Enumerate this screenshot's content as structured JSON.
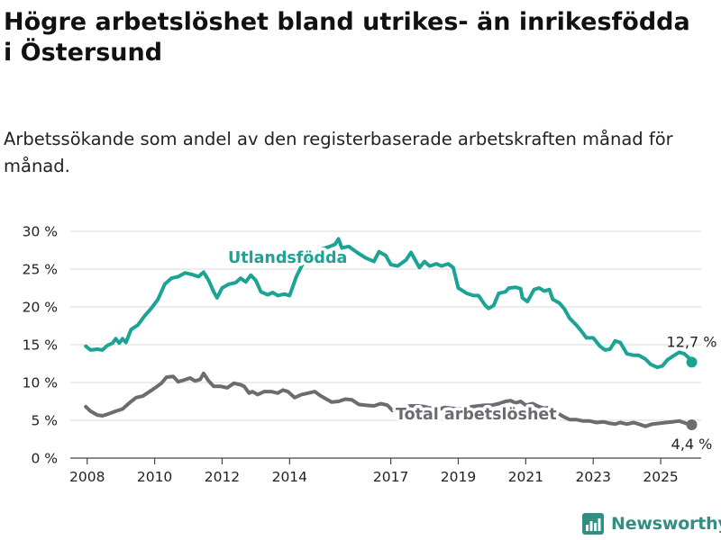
{
  "title": "Högre arbetslöshet bland utrikes- än inrikesfödda i Östersund",
  "subtitle": "Arbetssökande som andel av den registerbaserade arbetskraften månad för månad.",
  "brand": {
    "name": "Newsworthy",
    "logo_icon": "bar-chart-logo-icon"
  },
  "colors": {
    "utlandsfodda": "#1ba394",
    "total": "#6d6b72",
    "grid": "#d9d9d9",
    "axis": "#444444"
  },
  "chart_data": {
    "type": "line",
    "title": "Högre arbetslöshet bland utrikes- än inrikesfödda i Östersund",
    "xlabel": "",
    "ylabel": "",
    "xlim": [
      2007.5,
      2026.2
    ],
    "ylim": [
      0,
      30
    ],
    "y_ticks": [
      0,
      5,
      10,
      15,
      20,
      25,
      30
    ],
    "y_tick_labels": [
      "0 %",
      "5 %",
      "10 %",
      "15 %",
      "20 %",
      "25 %",
      "30 %"
    ],
    "x_ticks": [
      2008,
      2010,
      2012,
      2014,
      2017,
      2019,
      2021,
      2023,
      2025
    ],
    "x_tick_labels": [
      "2008",
      "2010",
      "2012",
      "2014",
      "2017",
      "2019",
      "2021",
      "2023",
      "2025"
    ],
    "grid": "horizontal",
    "series": [
      {
        "name": "Utlandsfödda",
        "color": "#1ba394",
        "end_label": "12,7 %",
        "points": [
          [
            2007.96,
            14.8
          ],
          [
            2008.1,
            14.3
          ],
          [
            2008.3,
            14.4
          ],
          [
            2008.45,
            14.3
          ],
          [
            2008.6,
            14.9
          ],
          [
            2008.75,
            15.2
          ],
          [
            2008.85,
            15.8
          ],
          [
            2008.95,
            15.2
          ],
          [
            2009.05,
            15.8
          ],
          [
            2009.15,
            15.3
          ],
          [
            2009.3,
            17.0
          ],
          [
            2009.5,
            17.6
          ],
          [
            2009.7,
            18.8
          ],
          [
            2009.9,
            19.8
          ],
          [
            2010.1,
            21.0
          ],
          [
            2010.3,
            23.0
          ],
          [
            2010.5,
            23.8
          ],
          [
            2010.7,
            24.0
          ],
          [
            2010.9,
            24.5
          ],
          [
            2011.1,
            24.3
          ],
          [
            2011.3,
            24.0
          ],
          [
            2011.45,
            24.6
          ],
          [
            2011.6,
            23.5
          ],
          [
            2011.75,
            22.0
          ],
          [
            2011.85,
            21.2
          ],
          [
            2012.0,
            22.5
          ],
          [
            2012.2,
            23.0
          ],
          [
            2012.4,
            23.2
          ],
          [
            2012.55,
            23.8
          ],
          [
            2012.7,
            23.3
          ],
          [
            2012.85,
            24.2
          ],
          [
            2013.0,
            23.5
          ],
          [
            2013.15,
            22.0
          ],
          [
            2013.35,
            21.6
          ],
          [
            2013.5,
            21.9
          ],
          [
            2013.65,
            21.5
          ],
          [
            2013.85,
            21.7
          ],
          [
            2014.0,
            21.5
          ],
          [
            2014.2,
            24.0
          ],
          [
            2014.4,
            25.8
          ],
          [
            2014.6,
            26.6
          ],
          [
            2014.8,
            27.1
          ],
          [
            2015.0,
            27.7
          ],
          [
            2015.2,
            28.0
          ],
          [
            2015.35,
            28.3
          ],
          [
            2015.45,
            29.0
          ],
          [
            2015.55,
            27.8
          ],
          [
            2015.75,
            28.0
          ],
          [
            2016.0,
            27.2
          ],
          [
            2016.25,
            26.5
          ],
          [
            2016.5,
            26.0
          ],
          [
            2016.65,
            27.3
          ],
          [
            2016.85,
            26.8
          ],
          [
            2017.0,
            25.6
          ],
          [
            2017.2,
            25.4
          ],
          [
            2017.45,
            26.2
          ],
          [
            2017.6,
            27.2
          ],
          [
            2017.75,
            26.0
          ],
          [
            2017.85,
            25.2
          ],
          [
            2018.0,
            26.0
          ],
          [
            2018.15,
            25.4
          ],
          [
            2018.35,
            25.7
          ],
          [
            2018.5,
            25.4
          ],
          [
            2018.7,
            25.7
          ],
          [
            2018.85,
            25.2
          ],
          [
            2019.0,
            22.5
          ],
          [
            2019.25,
            21.8
          ],
          [
            2019.45,
            21.5
          ],
          [
            2019.6,
            21.5
          ],
          [
            2019.8,
            20.2
          ],
          [
            2019.9,
            19.8
          ],
          [
            2020.05,
            20.2
          ],
          [
            2020.2,
            21.8
          ],
          [
            2020.4,
            22.0
          ],
          [
            2020.5,
            22.5
          ],
          [
            2020.7,
            22.6
          ],
          [
            2020.85,
            22.4
          ],
          [
            2020.9,
            21.2
          ],
          [
            2021.05,
            20.7
          ],
          [
            2021.25,
            22.3
          ],
          [
            2021.4,
            22.5
          ],
          [
            2021.55,
            22.1
          ],
          [
            2021.7,
            22.3
          ],
          [
            2021.8,
            21.0
          ],
          [
            2022.0,
            20.5
          ],
          [
            2022.15,
            19.7
          ],
          [
            2022.3,
            18.5
          ],
          [
            2022.5,
            17.6
          ],
          [
            2022.65,
            16.8
          ],
          [
            2022.8,
            15.9
          ],
          [
            2023.0,
            15.9
          ],
          [
            2023.2,
            14.8
          ],
          [
            2023.35,
            14.3
          ],
          [
            2023.5,
            14.4
          ],
          [
            2023.65,
            15.5
          ],
          [
            2023.8,
            15.3
          ],
          [
            2024.0,
            13.8
          ],
          [
            2024.2,
            13.6
          ],
          [
            2024.35,
            13.6
          ],
          [
            2024.55,
            13.1
          ],
          [
            2024.7,
            12.4
          ],
          [
            2024.9,
            12.0
          ],
          [
            2025.05,
            12.2
          ],
          [
            2025.2,
            13.0
          ],
          [
            2025.4,
            13.6
          ],
          [
            2025.55,
            14.0
          ],
          [
            2025.7,
            13.8
          ],
          [
            2025.85,
            13.2
          ],
          [
            2025.92,
            12.7
          ]
        ]
      },
      {
        "name": "Total arbetslöshet",
        "color": "#6d6b72",
        "end_label": "4,4 %",
        "points": [
          [
            2007.96,
            6.8
          ],
          [
            2008.1,
            6.2
          ],
          [
            2008.3,
            5.7
          ],
          [
            2008.45,
            5.6
          ],
          [
            2008.6,
            5.8
          ],
          [
            2008.85,
            6.2
          ],
          [
            2009.05,
            6.5
          ],
          [
            2009.25,
            7.3
          ],
          [
            2009.45,
            8.0
          ],
          [
            2009.65,
            8.2
          ],
          [
            2009.85,
            8.8
          ],
          [
            2010.05,
            9.4
          ],
          [
            2010.2,
            9.9
          ],
          [
            2010.35,
            10.7
          ],
          [
            2010.55,
            10.8
          ],
          [
            2010.7,
            10.1
          ],
          [
            2010.85,
            10.3
          ],
          [
            2011.05,
            10.6
          ],
          [
            2011.2,
            10.2
          ],
          [
            2011.35,
            10.4
          ],
          [
            2011.45,
            11.2
          ],
          [
            2011.6,
            10.2
          ],
          [
            2011.75,
            9.5
          ],
          [
            2011.95,
            9.5
          ],
          [
            2012.15,
            9.3
          ],
          [
            2012.35,
            9.9
          ],
          [
            2012.55,
            9.7
          ],
          [
            2012.65,
            9.5
          ],
          [
            2012.8,
            8.6
          ],
          [
            2012.9,
            8.8
          ],
          [
            2013.05,
            8.4
          ],
          [
            2013.25,
            8.8
          ],
          [
            2013.45,
            8.8
          ],
          [
            2013.65,
            8.6
          ],
          [
            2013.8,
            9.0
          ],
          [
            2013.95,
            8.8
          ],
          [
            2014.15,
            8.0
          ],
          [
            2014.35,
            8.4
          ],
          [
            2014.55,
            8.6
          ],
          [
            2014.75,
            8.8
          ],
          [
            2014.9,
            8.3
          ],
          [
            2015.05,
            7.9
          ],
          [
            2015.25,
            7.4
          ],
          [
            2015.45,
            7.5
          ],
          [
            2015.65,
            7.8
          ],
          [
            2015.85,
            7.7
          ],
          [
            2016.05,
            7.1
          ],
          [
            2016.25,
            7.0
          ],
          [
            2016.5,
            6.9
          ],
          [
            2016.7,
            7.2
          ],
          [
            2016.9,
            7.0
          ],
          [
            2017.05,
            6.3
          ],
          [
            2017.25,
            6.6
          ],
          [
            2017.45,
            6.8
          ],
          [
            2017.6,
            6.9
          ],
          [
            2017.8,
            6.9
          ],
          [
            2018.0,
            6.8
          ],
          [
            2018.2,
            6.6
          ],
          [
            2018.4,
            6.4
          ],
          [
            2018.6,
            6.7
          ],
          [
            2018.8,
            6.6
          ],
          [
            2019.0,
            6.5
          ],
          [
            2019.2,
            6.6
          ],
          [
            2019.4,
            6.8
          ],
          [
            2019.6,
            6.9
          ],
          [
            2019.8,
            7.0
          ],
          [
            2020.0,
            7.0
          ],
          [
            2020.2,
            7.2
          ],
          [
            2020.4,
            7.5
          ],
          [
            2020.55,
            7.6
          ],
          [
            2020.7,
            7.3
          ],
          [
            2020.85,
            7.5
          ],
          [
            2021.0,
            7.0
          ],
          [
            2021.2,
            7.2
          ],
          [
            2021.4,
            6.8
          ],
          [
            2021.55,
            6.6
          ],
          [
            2021.7,
            6.7
          ],
          [
            2021.85,
            6.2
          ],
          [
            2022.0,
            5.8
          ],
          [
            2022.15,
            5.4
          ],
          [
            2022.3,
            5.1
          ],
          [
            2022.5,
            5.1
          ],
          [
            2022.7,
            4.9
          ],
          [
            2022.9,
            4.9
          ],
          [
            2023.1,
            4.7
          ],
          [
            2023.3,
            4.8
          ],
          [
            2023.5,
            4.6
          ],
          [
            2023.65,
            4.5
          ],
          [
            2023.8,
            4.7
          ],
          [
            2024.0,
            4.5
          ],
          [
            2024.2,
            4.7
          ],
          [
            2024.35,
            4.5
          ],
          [
            2024.55,
            4.2
          ],
          [
            2024.75,
            4.5
          ],
          [
            2024.95,
            4.6
          ],
          [
            2025.15,
            4.7
          ],
          [
            2025.35,
            4.8
          ],
          [
            2025.55,
            4.9
          ],
          [
            2025.75,
            4.6
          ],
          [
            2025.92,
            4.4
          ]
        ]
      }
    ]
  }
}
